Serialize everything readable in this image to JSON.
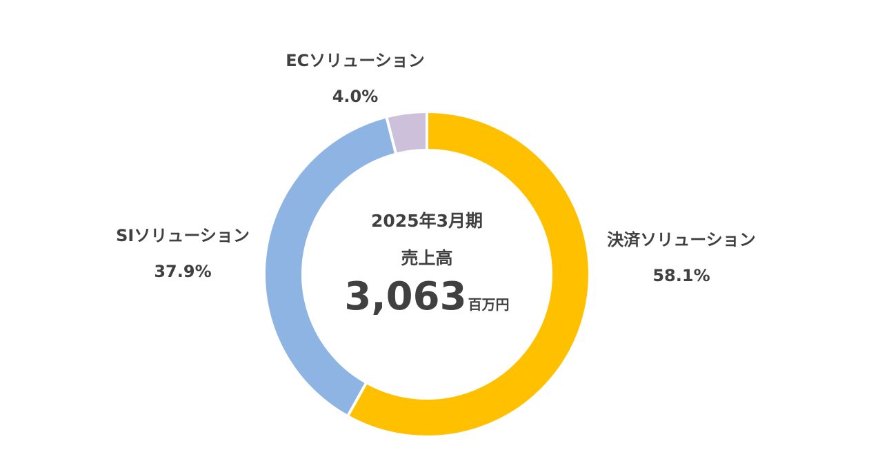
{
  "chart_data": {
    "type": "pie",
    "donut": true,
    "center": {
      "period": "2025年3月期",
      "metric": "売上高",
      "total": "3,063",
      "unit": "百万円"
    },
    "slices": [
      {
        "name": "決済ソリューション",
        "value": 58.1,
        "label": "58.1%",
        "color": "#FFC000"
      },
      {
        "name": "SIソリューション",
        "value": 37.9,
        "label": "37.9%",
        "color": "#8EB4E3"
      },
      {
        "name": "ECソリューション",
        "value": 4.0,
        "label": "4.0%",
        "color": "#CCC0DA"
      }
    ],
    "start_angle_deg": 0,
    "direction": "clockwise",
    "legend": "none"
  }
}
